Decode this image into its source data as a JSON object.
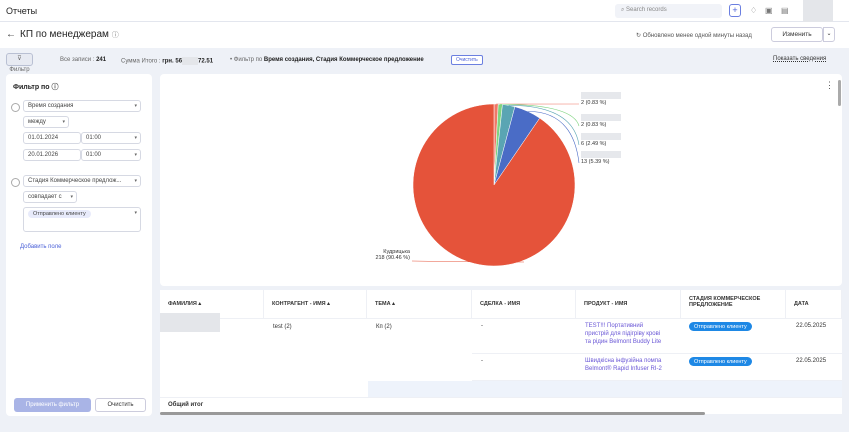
{
  "topbar": {
    "title": "Отчеты",
    "search_placeholder": "Search records",
    "add": "+"
  },
  "header": {
    "back": "←",
    "title": "КП по менеджерам",
    "info": "ⓘ",
    "updated": "Обновлено менее одной минуты назад",
    "edit": "Изменить",
    "edit_caret": "⌄"
  },
  "filterbar": {
    "filter_button": "Фильтр",
    "all_records_label": "Все записи :",
    "all_records": "241",
    "sum_label": "Сумма Итого :",
    "sum_prefix": "грн. 56",
    "sum_suffix": "72.51",
    "filter_by_label": "• Фильтр по",
    "filter_fields": "Время создания, Стадия Коммерческое предложение",
    "clear": "Очистить",
    "show_details": "Показать сведения"
  },
  "sidebar": {
    "title": "Фильтр по",
    "f1_field": "Время создания",
    "f1_op": "между",
    "f1_from_date": "01.01.2024",
    "f1_from_time": "01:00",
    "f1_to_date": "20.01.2026",
    "f1_to_time": "01:00",
    "f2_field": "Стадия Коммерческое предлож...",
    "f2_op": "совпадает с",
    "f2_value": "Отправлено клиенту",
    "add_field": "Добавить поле",
    "apply": "Применить фильтр",
    "clear": "Очистить"
  },
  "chart_data": {
    "type": "pie",
    "values": [
      2,
      2,
      6,
      13,
      218
    ],
    "labels": [
      "2 (0.83 %)",
      "2 (0.83 %)",
      "6 (2.49 %)",
      "13 (5.39 %)",
      "218 (90.46 %)"
    ],
    "names": [
      "",
      "",
      "",
      "",
      "Кудрицька"
    ],
    "colors": [
      "#f07868",
      "#7fd47f",
      "#5aa5b3",
      "#4a6cc6",
      "#e5533a"
    ],
    "legend": "none"
  },
  "table": {
    "headers": [
      "Фамилия ▴",
      "Контрагент - Имя ▴",
      "Тема ▴",
      "Сделка - Имя",
      "Продукт - Имя",
      "Стадия Коммерческое предложение",
      "Дата"
    ],
    "group": {
      "contractor": "test (2)",
      "topic": "Кп (2)"
    },
    "rows": [
      {
        "deal": "-",
        "product": "TEST!!! Портативний пристрій для підігріву крові та рідин Belmont Buddy Lite",
        "stage": "Отправлено клиенту",
        "date": "22.05.2025"
      },
      {
        "deal": "-",
        "product": "Швидкісна інфузійна помпа Belmont® Rapid Infuser RI-2",
        "stage": "Отправлено клиенту",
        "date": "22.05.2025"
      }
    ],
    "total": "Общий итог"
  }
}
